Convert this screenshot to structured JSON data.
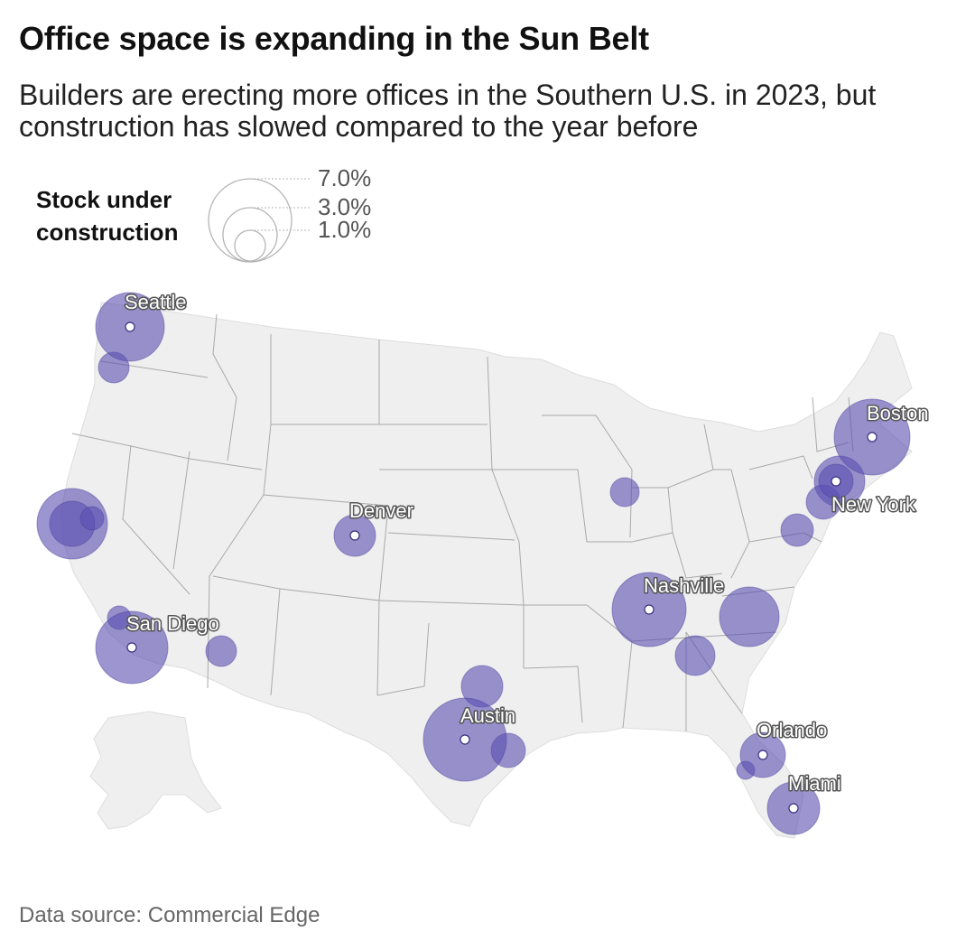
{
  "header": {
    "title": "Office space is expanding in the Sun Belt",
    "subtitle": "Builders are erecting more offices in the Southern U.S. in 2023, but construction has slowed compared to the year before"
  },
  "legend": {
    "title_line1": "Stock under",
    "title_line2": "construction",
    "values": [
      "7.0%",
      "3.0%",
      "1.0%"
    ]
  },
  "footer": {
    "source": "Data source: Commercial Edge"
  },
  "colors": {
    "bubble": "#5a4fb0",
    "land": "#efefef",
    "border": "#a9a9a9"
  },
  "chart_data": {
    "type": "proportional-symbol-map",
    "title": "Office space is expanding in the Sun Belt",
    "metric": "Stock under construction (%)",
    "legend_values": [
      7.0,
      3.0,
      1.0
    ],
    "labeled_markets": [
      {
        "name": "Seattle",
        "value": 4.2
      },
      {
        "name": "Boston",
        "value": 5.0
      },
      {
        "name": "New York",
        "value": 2.5
      },
      {
        "name": "Denver",
        "value": 1.5
      },
      {
        "name": "San Diego",
        "value": 4.5
      },
      {
        "name": "Nashville",
        "value": 5.0
      },
      {
        "name": "Austin",
        "value": 6.6
      },
      {
        "name": "Orlando",
        "value": 1.8
      },
      {
        "name": "Miami",
        "value": 2.4
      }
    ],
    "unlabeled_markets": [
      {
        "value": 0.9
      },
      {
        "value": 4.6
      },
      {
        "value": 0.5
      },
      {
        "value": 0.5
      },
      {
        "value": 0.9
      },
      {
        "value": 1.5
      },
      {
        "value": 0.8
      },
      {
        "value": 2.3
      },
      {
        "value": 1.2
      },
      {
        "value": 1.5
      },
      {
        "value": 3.3
      },
      {
        "value": 2.7
      },
      {
        "value": 1.3
      },
      {
        "value": 1.2
      },
      {
        "value": 0.3
      }
    ]
  }
}
